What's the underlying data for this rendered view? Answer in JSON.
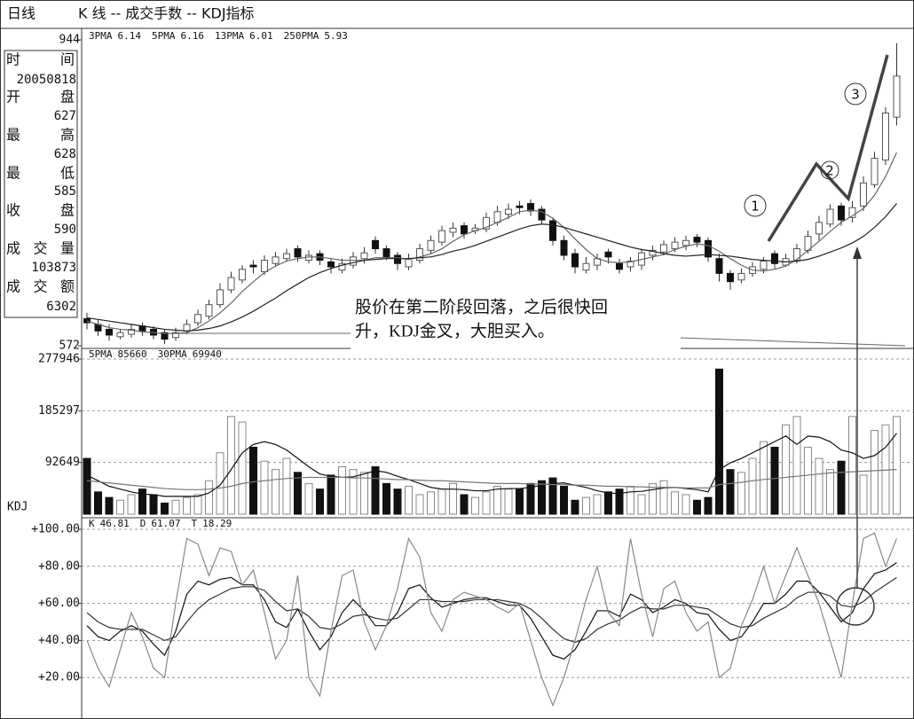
{
  "header": {
    "period": "日线",
    "title": "K 线 -- 成交手数 -- KDJ指标"
  },
  "info": [
    {
      "label": "时间",
      "value": "20050818"
    },
    {
      "label": "开盘",
      "value": 627
    },
    {
      "label": "最高",
      "value": 628
    },
    {
      "label": "最低",
      "value": 585
    },
    {
      "label": "收盘",
      "value": 590
    },
    {
      "label": "成交量",
      "value": 103873
    },
    {
      "label": "成交额",
      "value": 6302
    }
  ],
  "chart_data": [
    {
      "type": "candlestick",
      "annotation": [
        "股价在第二阶段回落，之后很快回",
        "升，KDJ金叉，大胆买入。"
      ],
      "markers": [
        "1",
        "2",
        "3"
      ],
      "ylim": [
        572,
        944
      ],
      "yticks": [
        572,
        944
      ],
      "up_color": "#ffffff",
      "down_color": "#111111",
      "open": [
        605,
        598,
        592,
        583,
        586,
        596,
        592,
        588,
        582,
        590,
        600,
        608,
        622,
        640,
        652,
        670,
        662,
        672,
        678,
        690,
        676,
        684,
        674,
        664,
        670,
        678,
        700,
        690,
        682,
        668,
        676,
        688,
        698,
        710,
        718,
        712,
        714,
        722,
        732,
        742,
        745,
        738,
        724,
        700,
        684,
        664,
        670,
        686,
        672,
        668,
        670,
        682,
        686,
        690,
        694,
        704,
        700,
        678,
        660,
        652,
        660,
        665,
        684,
        670,
        676,
        688,
        708,
        720,
        742,
        728,
        742,
        768,
        798,
        850
      ],
      "high": [
        612,
        604,
        598,
        592,
        598,
        600,
        596,
        592,
        594,
        604,
        616,
        628,
        648,
        662,
        670,
        676,
        682,
        686,
        690,
        694,
        688,
        688,
        678,
        678,
        686,
        692,
        705,
        694,
        686,
        684,
        696,
        706,
        718,
        722,
        722,
        720,
        734,
        742,
        745,
        748,
        750,
        742,
        728,
        706,
        690,
        680,
        684,
        690,
        678,
        680,
        690,
        694,
        700,
        704,
        706,
        708,
        704,
        684,
        664,
        666,
        674,
        680,
        688,
        684,
        696,
        712,
        730,
        744,
        746,
        748,
        778,
        808,
        862,
        940
      ],
      "low": [
        592,
        584,
        578,
        580,
        582,
        584,
        580,
        574,
        578,
        586,
        596,
        604,
        618,
        636,
        648,
        660,
        658,
        668,
        674,
        674,
        672,
        670,
        660,
        660,
        666,
        672,
        684,
        676,
        664,
        664,
        672,
        684,
        694,
        704,
        702,
        708,
        710,
        718,
        726,
        732,
        730,
        720,
        694,
        676,
        660,
        660,
        664,
        672,
        660,
        662,
        664,
        676,
        682,
        686,
        688,
        692,
        674,
        650,
        640,
        648,
        656,
        660,
        666,
        668,
        672,
        684,
        700,
        716,
        718,
        722,
        736,
        764,
        792,
        840
      ],
      "close": [
        600,
        590,
        585,
        588,
        592,
        590,
        585,
        580,
        588,
        598,
        610,
        622,
        640,
        655,
        665,
        668,
        676,
        680,
        684,
        680,
        682,
        676,
        668,
        672,
        680,
        685,
        690,
        680,
        672,
        678,
        690,
        700,
        712,
        715,
        708,
        715,
        728,
        735,
        738,
        740,
        736,
        725,
        700,
        682,
        668,
        672,
        678,
        680,
        665,
        675,
        685,
        688,
        695,
        698,
        700,
        698,
        680,
        660,
        650,
        660,
        668,
        675,
        672,
        678,
        690,
        705,
        722,
        738,
        725,
        740,
        770,
        800,
        855,
        900
      ],
      "series": [
        {
          "name": "3PMA",
          "latest": 6.14,
          "color": "#222222"
        },
        {
          "name": "5PMA",
          "latest": 6.16,
          "color": "#666666",
          "values": [
            602,
            598,
            594,
            592,
            591,
            589,
            588,
            587,
            587,
            588,
            594,
            602,
            612,
            624,
            638,
            650,
            661,
            669,
            675,
            678,
            680,
            680,
            678,
            676,
            676,
            676,
            679,
            679,
            679,
            677,
            680,
            684,
            690,
            699,
            707,
            712,
            716,
            722,
            728,
            735,
            737,
            735,
            727,
            716,
            702,
            689,
            678,
            674,
            673,
            674,
            677,
            680,
            683,
            689,
            693,
            696,
            694,
            687,
            678,
            670,
            664,
            663,
            665,
            669,
            677,
            688,
            699,
            711,
            722,
            730,
            739,
            755,
            778,
            807
          ]
        },
        {
          "name": "13PMA",
          "latest": 6.01,
          "color": "#222222",
          "values": [
            606,
            604,
            602,
            600,
            598,
            596,
            594,
            592,
            591,
            590,
            591,
            593,
            596,
            601,
            607,
            614,
            622,
            630,
            639,
            647,
            655,
            661,
            666,
            670,
            673,
            676,
            677,
            678,
            678,
            678,
            679,
            680,
            683,
            687,
            690,
            694,
            699,
            704,
            709,
            714,
            718,
            720,
            719,
            716,
            712,
            708,
            704,
            700,
            696,
            692,
            689,
            687,
            684,
            682,
            681,
            682,
            683,
            682,
            681,
            679,
            677,
            676,
            675,
            674,
            675,
            677,
            681,
            686,
            691,
            697,
            705,
            716,
            729,
            745
          ]
        },
        {
          "name": "250PMA",
          "latest": 5.93,
          "color": "#999999"
        }
      ]
    },
    {
      "type": "bar",
      "ylim": [
        0,
        277946
      ],
      "yticks": [
        92649,
        185297,
        277946
      ],
      "grid": true,
      "values": [
        100000,
        40000,
        30000,
        25000,
        35000,
        45000,
        35000,
        20000,
        25000,
        30000,
        35000,
        60000,
        110000,
        175000,
        165000,
        120000,
        95000,
        80000,
        100000,
        75000,
        55000,
        45000,
        70000,
        85000,
        80000,
        75000,
        85000,
        55000,
        45000,
        50000,
        35000,
        40000,
        45000,
        55000,
        35000,
        30000,
        40000,
        50000,
        45000,
        45000,
        55000,
        60000,
        65000,
        50000,
        25000,
        30000,
        35000,
        40000,
        45000,
        50000,
        35000,
        55000,
        60000,
        40000,
        35000,
        25000,
        30000,
        260000,
        80000,
        75000,
        100000,
        130000,
        120000,
        160000,
        175000,
        120000,
        100000,
        80000,
        95000,
        175000,
        70000,
        150000,
        160000,
        175000
      ],
      "series": [
        {
          "name": "5PMA",
          "latest": 85660,
          "color": "#111111",
          "values": [
            70000,
            60000,
            50000,
            45000,
            40000,
            36000,
            35000,
            32000,
            32000,
            32000,
            32000,
            38000,
            52000,
            80000,
            110000,
            125000,
            130000,
            125000,
            115000,
            100000,
            85000,
            72000,
            68000,
            66000,
            67000,
            72000,
            78000,
            75000,
            68000,
            62000,
            55000,
            48000,
            45000,
            45000,
            44000,
            42000,
            42000,
            45000,
            46000,
            46000,
            48000,
            52000,
            55000,
            56000,
            52000,
            48000,
            42000,
            38000,
            37000,
            40000,
            41000,
            44000,
            47000,
            48000,
            46000,
            44000,
            40000,
            80000,
            92000,
            100000,
            110000,
            120000,
            130000,
            140000,
            125000,
            140000,
            138000,
            130000,
            115000,
            110000,
            100000,
            105000,
            120000,
            145000
          ]
        },
        {
          "name": "30PMA",
          "latest": 69940,
          "color": "#777777",
          "values": [
            60000,
            58000,
            56000,
            54000,
            52000,
            50000,
            48000,
            46000,
            45000,
            44000,
            44000,
            45000,
            47000,
            50000,
            55000,
            58000,
            60000,
            62000,
            64000,
            65000,
            66000,
            66000,
            66000,
            66000,
            65000,
            65000,
            64000,
            63000,
            62000,
            62000,
            61000,
            60000,
            60000,
            59000,
            58000,
            57000,
            56000,
            55000,
            55000,
            55000,
            54000,
            54000,
            53000,
            53000,
            52000,
            52000,
            51000,
            50000,
            50000,
            49000,
            49000,
            48000,
            48000,
            48000,
            47000,
            47000,
            47000,
            53000,
            55000,
            57000,
            60000,
            62000,
            64000,
            66000,
            68000,
            70000,
            72000,
            74000,
            75000,
            76000,
            77000,
            78000,
            79000,
            80000
          ]
        }
      ]
    },
    {
      "type": "line",
      "title": "KDJ",
      "ylim": [
        0,
        100
      ],
      "grid": true,
      "yticks": [
        {
          "value": 20,
          "label": "+20.00"
        },
        {
          "value": 40,
          "label": "+40.00"
        },
        {
          "value": 60,
          "label": "+60.00"
        },
        {
          "value": 80,
          "label": "+80.00"
        },
        {
          "value": 100,
          "label": "+100.00"
        }
      ],
      "series": [
        {
          "name": "K",
          "latest": 46.81,
          "color": "#111111",
          "values": [
            48,
            42,
            40,
            45,
            48,
            45,
            38,
            32,
            45,
            65,
            72,
            70,
            73,
            74,
            70,
            70,
            62,
            50,
            47,
            57,
            45,
            35,
            42,
            55,
            62,
            56,
            48,
            48,
            55,
            68,
            70,
            63,
            58,
            60,
            62,
            63,
            63,
            61,
            59,
            59,
            52,
            42,
            32,
            30,
            35,
            45,
            56,
            56,
            53,
            65,
            62,
            55,
            58,
            62,
            60,
            55,
            54,
            46,
            40,
            42,
            50,
            60,
            60,
            65,
            72,
            72,
            66,
            58,
            50,
            55,
            68,
            76,
            78,
            82
          ]
        },
        {
          "name": "D",
          "latest": 61.07,
          "color": "#333333",
          "values": [
            55,
            50,
            47,
            46,
            46,
            46,
            43,
            40,
            42,
            50,
            57,
            62,
            65,
            68,
            69,
            69,
            67,
            61,
            56,
            57,
            53,
            47,
            46,
            49,
            53,
            54,
            52,
            51,
            52,
            57,
            62,
            62,
            61,
            61,
            61,
            62,
            62,
            62,
            61,
            60,
            57,
            52,
            46,
            41,
            39,
            41,
            46,
            49,
            51,
            55,
            58,
            57,
            57,
            59,
            59,
            58,
            57,
            53,
            49,
            47,
            48,
            52,
            55,
            58,
            63,
            66,
            66,
            64,
            59,
            58,
            61,
            66,
            70,
            74
          ]
        },
        {
          "name": "T",
          "latest": 18.29,
          "color": "#888888",
          "values": [
            40,
            25,
            15,
            35,
            55,
            42,
            25,
            20,
            60,
            95,
            92,
            75,
            90,
            88,
            70,
            78,
            55,
            30,
            40,
            75,
            20,
            10,
            45,
            75,
            78,
            50,
            35,
            48,
            68,
            95,
            85,
            55,
            45,
            62,
            66,
            64,
            62,
            58,
            55,
            60,
            40,
            20,
            5,
            20,
            40,
            62,
            80,
            55,
            48,
            95,
            65,
            42,
            68,
            72,
            55,
            45,
            50,
            20,
            25,
            48,
            62,
            80,
            60,
            75,
            90,
            75,
            60,
            40,
            20,
            60,
            95,
            98,
            80,
            95
          ]
        }
      ]
    }
  ]
}
